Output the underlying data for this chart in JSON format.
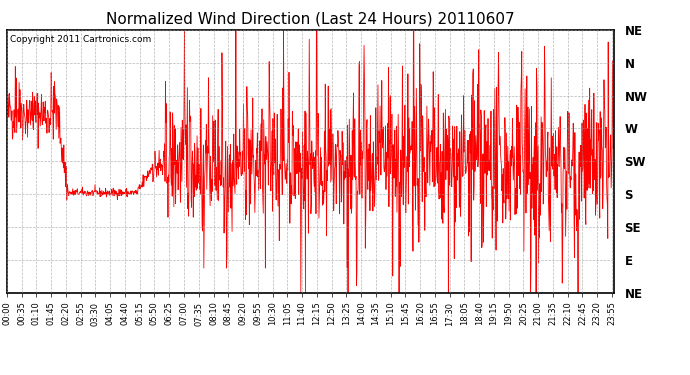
{
  "title": "Normalized Wind Direction (Last 24 Hours) 20110607",
  "copyright_text": "Copyright 2011 Cartronics.com",
  "line_color": "#ff0000",
  "background_color": "#ffffff",
  "plot_background": "#ffffff",
  "grid_color": "#999999",
  "title_fontsize": 11,
  "ytick_labels": [
    "NE",
    "N",
    "NW",
    "W",
    "SW",
    "S",
    "SE",
    "E",
    "NE"
  ],
  "ytick_values": [
    1.0,
    0.875,
    0.75,
    0.625,
    0.5,
    0.375,
    0.25,
    0.125,
    0.0
  ],
  "ylim": [
    0.0,
    1.0
  ],
  "total_minutes": 1440,
  "seed": 42
}
